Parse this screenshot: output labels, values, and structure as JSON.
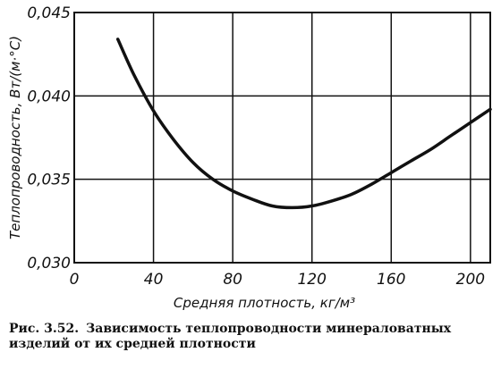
{
  "chart_data": {
    "type": "line",
    "title": "",
    "xlabel": "Средняя плотность, кг/м³",
    "ylabel": "Теплопроводность, Вт/(м·°С)",
    "xlim": [
      0,
      210
    ],
    "ylim": [
      0.03,
      0.045
    ],
    "x_ticks": [
      0,
      40,
      80,
      120,
      160,
      200
    ],
    "y_ticks": [
      0.03,
      0.035,
      0.04,
      0.045
    ],
    "x_tick_labels": [
      "0",
      "40",
      "80",
      "120",
      "160",
      "200"
    ],
    "y_tick_labels": [
      "0,030",
      "0,035",
      "0,040",
      "0,045"
    ],
    "grid": true,
    "series": [
      {
        "x": [
          22,
          30,
          40,
          50,
          60,
          70,
          80,
          90,
          100,
          110,
          120,
          130,
          140,
          150,
          160,
          170,
          180,
          190,
          200,
          210
        ],
        "y": [
          0.0434,
          0.0413,
          0.0391,
          0.0374,
          0.036,
          0.035,
          0.0343,
          0.0338,
          0.0334,
          0.0333,
          0.0334,
          0.0337,
          0.0341,
          0.0347,
          0.0354,
          0.0361,
          0.0368,
          0.0376,
          0.0384,
          0.0392
        ]
      }
    ]
  },
  "caption": {
    "number": "Рис. 3.52.",
    "text": "Зависимость теплопроводности минераловатных изделий от их средней плотности"
  }
}
